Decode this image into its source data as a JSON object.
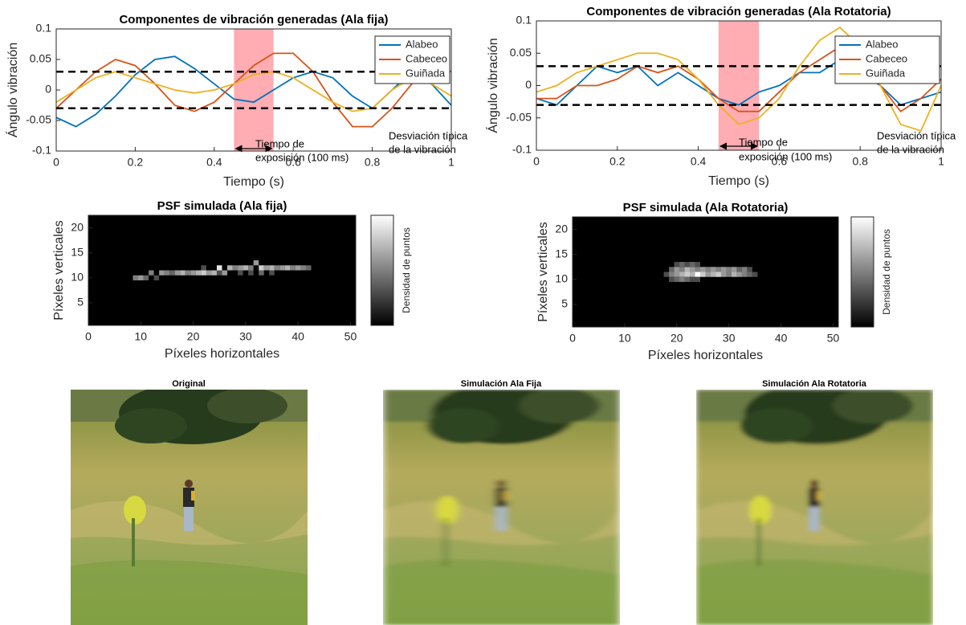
{
  "chart_data": [
    {
      "type": "line",
      "title": "Componentes de vibración generadas (Ala fija)",
      "xlabel": "Tiempo (s)",
      "ylabel": "Ángulo vibración",
      "x": [
        0,
        0.05,
        0.1,
        0.15,
        0.2,
        0.25,
        0.3,
        0.35,
        0.4,
        0.45,
        0.5,
        0.55,
        0.6,
        0.65,
        0.7,
        0.75,
        0.8,
        0.85,
        0.9,
        0.95,
        1
      ],
      "series": [
        {
          "name": "Alabeo",
          "color": "#0072bd",
          "values": [
            -0.045,
            -0.06,
            -0.04,
            -0.01,
            0.025,
            0.05,
            0.055,
            0.035,
            0.01,
            -0.015,
            -0.02,
            0.0,
            0.02,
            0.03,
            0.02,
            -0.01,
            -0.03,
            0.0,
            0.03,
            0.01,
            -0.025
          ]
        },
        {
          "name": "Cabeceo",
          "color": "#d95319",
          "values": [
            -0.03,
            0.0,
            0.03,
            0.05,
            0.04,
            0.01,
            -0.025,
            -0.035,
            -0.02,
            0.01,
            0.04,
            0.06,
            0.06,
            0.03,
            -0.02,
            -0.06,
            -0.06,
            -0.03,
            0.01,
            0.04,
            0.03
          ]
        },
        {
          "name": "Guiñada",
          "color": "#edb120",
          "values": [
            -0.02,
            0.0,
            0.02,
            0.03,
            0.02,
            0.01,
            0.0,
            -0.005,
            0.0,
            0.01,
            0.025,
            0.03,
            0.02,
            0.0,
            -0.02,
            -0.035,
            -0.03,
            0.0,
            0.02,
            0.01,
            -0.01
          ]
        }
      ],
      "xlim": [
        0,
        1
      ],
      "ylim": [
        -0.1,
        0.1
      ],
      "xticks": [
        0,
        0.2,
        0.4,
        0.6,
        0.8,
        1
      ],
      "yticks": [
        -0.1,
        -0.05,
        0,
        0.05,
        0.1
      ],
      "reference_lines": [
        0.03,
        -0.03
      ],
      "exposure_span": [
        0.45,
        0.55
      ],
      "annotations": [
        [
          "Tiempo de",
          "exposición (100 ms)"
        ],
        [
          "Desviación típica",
          "de la vibración"
        ]
      ],
      "legend": "upper right"
    },
    {
      "type": "line",
      "title": "Componentes de vibración generadas (Ala Rotatoria)",
      "xlabel": "Tiempo (s)",
      "ylabel": "Ángulo vibración",
      "x": [
        0,
        0.05,
        0.1,
        0.15,
        0.2,
        0.25,
        0.3,
        0.35,
        0.4,
        0.45,
        0.5,
        0.55,
        0.6,
        0.65,
        0.7,
        0.75,
        0.8,
        0.85,
        0.9,
        0.95,
        1
      ],
      "series": [
        {
          "name": "Alabeo",
          "color": "#0072bd",
          "values": [
            -0.02,
            -0.03,
            0.0,
            0.03,
            0.02,
            0.03,
            0.0,
            0.02,
            0.0,
            -0.02,
            -0.03,
            -0.01,
            0.0,
            0.02,
            0.02,
            0.04,
            0.02,
            0.0,
            -0.03,
            -0.02,
            -0.01
          ]
        },
        {
          "name": "Cabeceo",
          "color": "#d95319",
          "values": [
            -0.02,
            -0.02,
            0.0,
            0.0,
            0.01,
            0.03,
            0.02,
            0.03,
            0.01,
            -0.02,
            -0.04,
            -0.04,
            -0.01,
            0.02,
            0.04,
            0.06,
            0.04,
            0.0,
            -0.04,
            -0.02,
            0.01
          ]
        },
        {
          "name": "Guiñada",
          "color": "#edb120",
          "values": [
            -0.01,
            0.0,
            0.02,
            0.03,
            0.04,
            0.05,
            0.05,
            0.04,
            0.01,
            -0.03,
            -0.06,
            -0.05,
            -0.02,
            0.03,
            0.07,
            0.09,
            0.06,
            0.0,
            -0.06,
            -0.07,
            0.0
          ]
        }
      ],
      "xlim": [
        0,
        1
      ],
      "ylim": [
        -0.1,
        0.1
      ],
      "xticks": [
        0,
        0.2,
        0.4,
        0.6,
        0.8,
        1
      ],
      "yticks": [
        -0.1,
        -0.05,
        0,
        0.05,
        0.1
      ],
      "reference_lines": [
        0.03,
        -0.03
      ],
      "exposure_span": [
        0.45,
        0.55
      ],
      "annotations": [
        [
          "Tiempo de",
          "exposición (100 ms)"
        ],
        [
          "Desviación típica",
          "de la vibración"
        ]
      ],
      "legend": "upper right"
    },
    {
      "type": "heatmap",
      "title": "PSF simulada (Ala fija)",
      "xlabel": "Píxeles horizontales",
      "ylabel": "Píxeles verticales",
      "colorbar_label": "Densidad de puntos",
      "xlim": [
        0,
        51
      ],
      "ylim": [
        0.5,
        22.5
      ],
      "xticks": [
        0,
        10,
        20,
        30,
        40,
        50
      ],
      "yticks": [
        5,
        10,
        15,
        20
      ],
      "points": [
        [
          9,
          10,
          0.5
        ],
        [
          10,
          10,
          0.6
        ],
        [
          11,
          10,
          0.4
        ],
        [
          12,
          11,
          0.5
        ],
        [
          13,
          10,
          0.3
        ],
        [
          14,
          11,
          0.6
        ],
        [
          15,
          11,
          0.5
        ],
        [
          16,
          11,
          0.4
        ],
        [
          17,
          11,
          0.6
        ],
        [
          18,
          11,
          0.7
        ],
        [
          19,
          11,
          0.5
        ],
        [
          20,
          11,
          0.6
        ],
        [
          21,
          11,
          0.7
        ],
        [
          22,
          11,
          0.8
        ],
        [
          23,
          11,
          0.6
        ],
        [
          24,
          11,
          0.7
        ],
        [
          25,
          12,
          0.9
        ],
        [
          26,
          11,
          0.6
        ],
        [
          27,
          12,
          0.7
        ],
        [
          28,
          12,
          0.5
        ],
        [
          29,
          12,
          0.6
        ],
        [
          30,
          12,
          0.7
        ],
        [
          31,
          12,
          0.5
        ],
        [
          32,
          13,
          0.6
        ],
        [
          33,
          12,
          0.8
        ],
        [
          34,
          12,
          0.6
        ],
        [
          35,
          12,
          0.7
        ],
        [
          36,
          12,
          0.5
        ],
        [
          37,
          12,
          0.6
        ],
        [
          38,
          12,
          0.7
        ],
        [
          39,
          12,
          0.5
        ],
        [
          40,
          12,
          0.6
        ],
        [
          41,
          12,
          0.5
        ],
        [
          42,
          12,
          0.4
        ],
        [
          25,
          11,
          0.3
        ],
        [
          31,
          11,
          0.3
        ],
        [
          33,
          11,
          0.4
        ],
        [
          35,
          11,
          0.3
        ],
        [
          22,
          12,
          0.3
        ],
        [
          29,
          11,
          0.3
        ]
      ]
    },
    {
      "type": "heatmap",
      "title": "PSF simulada (Ala Rotatoria)",
      "xlabel": "Píxeles horizontales",
      "ylabel": "Píxeles verticales",
      "colorbar_label": "Densidad de puntos",
      "xlim": [
        0,
        51
      ],
      "ylim": [
        0.5,
        22.5
      ],
      "xticks": [
        0,
        10,
        20,
        30,
        40,
        50
      ],
      "yticks": [
        5,
        10,
        15,
        20
      ],
      "points": [
        [
          18,
          11,
          0.3
        ],
        [
          19,
          11,
          0.5
        ],
        [
          20,
          11,
          0.6
        ],
        [
          21,
          11,
          0.7
        ],
        [
          22,
          11,
          0.8
        ],
        [
          23,
          11,
          0.7
        ],
        [
          24,
          11,
          1.0
        ],
        [
          25,
          11,
          0.8
        ],
        [
          26,
          11,
          0.6
        ],
        [
          27,
          11,
          0.7
        ],
        [
          28,
          11,
          0.8
        ],
        [
          29,
          11,
          0.6
        ],
        [
          30,
          11,
          0.5
        ],
        [
          31,
          11,
          0.7
        ],
        [
          32,
          11,
          0.6
        ],
        [
          33,
          11,
          0.5
        ],
        [
          34,
          11,
          0.4
        ],
        [
          35,
          11,
          0.3
        ],
        [
          19,
          12,
          0.4
        ],
        [
          20,
          12,
          0.6
        ],
        [
          21,
          12,
          0.5
        ],
        [
          22,
          12,
          0.7
        ],
        [
          23,
          12,
          0.6
        ],
        [
          24,
          12,
          0.5
        ],
        [
          25,
          12,
          0.6
        ],
        [
          26,
          12,
          0.5
        ],
        [
          27,
          12,
          0.6
        ],
        [
          28,
          12,
          0.5
        ],
        [
          29,
          12,
          0.6
        ],
        [
          30,
          12,
          0.5
        ],
        [
          31,
          12,
          0.6
        ],
        [
          32,
          12,
          0.4
        ],
        [
          33,
          12,
          0.5
        ],
        [
          34,
          12,
          0.3
        ],
        [
          19,
          10,
          0.3
        ],
        [
          20,
          10,
          0.4
        ],
        [
          21,
          10,
          0.5
        ],
        [
          22,
          10,
          0.4
        ],
        [
          23,
          10,
          0.3
        ],
        [
          24,
          10,
          0.3
        ],
        [
          20,
          13,
          0.3
        ],
        [
          21,
          13,
          0.4
        ],
        [
          22,
          13,
          0.3
        ],
        [
          23,
          13,
          0.4
        ],
        [
          24,
          13,
          0.3
        ]
      ]
    }
  ],
  "images": [
    {
      "title": "Original"
    },
    {
      "title": "Simulación Ala Fija"
    },
    {
      "title": "Simulación Ala Rotatoria"
    }
  ]
}
